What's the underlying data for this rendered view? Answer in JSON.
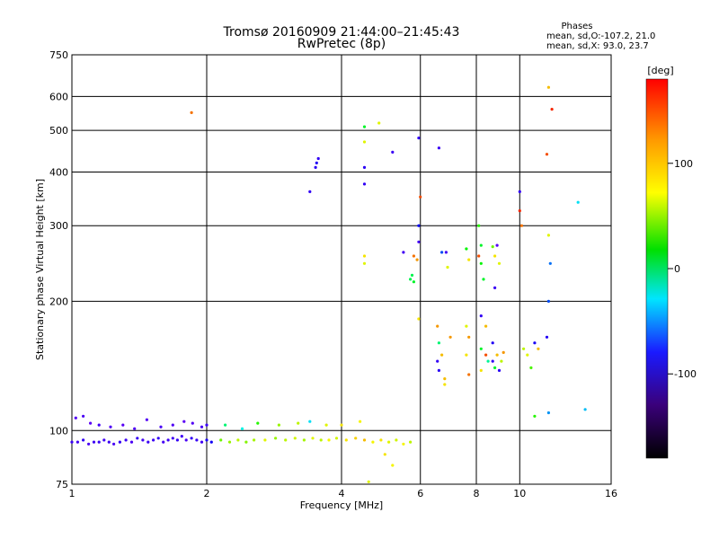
{
  "chart_data": {
    "type": "scatter",
    "title": "Tromsø 20160909 21:44:00–21:45:43",
    "subtitle": "RwPretec (8p)",
    "xlabel": "Frequency [MHz]",
    "ylabel": "Stationary phase Virtual Height [km]",
    "xscale": "log",
    "yscale": "log",
    "xlim": [
      1,
      16
    ],
    "ylim": [
      75,
      750
    ],
    "grid": true,
    "x_ticks": [
      1,
      2,
      4,
      6,
      8,
      10,
      16
    ],
    "x_tick_labels": [
      "1",
      "2",
      "4",
      "6",
      "8",
      "10",
      "16"
    ],
    "y_ticks": [
      75,
      100,
      200,
      300,
      400,
      500,
      600,
      750
    ],
    "y_tick_labels": [
      "75",
      "100",
      "200",
      "300",
      "400",
      "500",
      "600",
      "750"
    ],
    "phases_box": {
      "heading": "Phases",
      "line1": "mean, sd,O:-107.2, 21.0",
      "line2": "mean, sd,X:  93.0, 23.7"
    },
    "colorbar": {
      "label": "[deg]",
      "range": [
        -180,
        180
      ],
      "ticks": [
        100,
        0,
        -100
      ],
      "tick_labels": [
        "100",
        "0",
        "-100"
      ]
    },
    "points": [
      {
        "x": 1.0,
        "y": 94,
        "phase": -115
      },
      {
        "x": 1.03,
        "y": 94,
        "phase": -120
      },
      {
        "x": 1.06,
        "y": 95,
        "phase": -110
      },
      {
        "x": 1.09,
        "y": 93,
        "phase": -125
      },
      {
        "x": 1.12,
        "y": 94,
        "phase": -118
      },
      {
        "x": 1.15,
        "y": 94,
        "phase": -112
      },
      {
        "x": 1.18,
        "y": 95,
        "phase": -120
      },
      {
        "x": 1.21,
        "y": 94,
        "phase": -115
      },
      {
        "x": 1.24,
        "y": 93,
        "phase": -122
      },
      {
        "x": 1.28,
        "y": 94,
        "phase": -110
      },
      {
        "x": 1.32,
        "y": 95,
        "phase": -118
      },
      {
        "x": 1.36,
        "y": 94,
        "phase": -125
      },
      {
        "x": 1.4,
        "y": 96,
        "phase": -112
      },
      {
        "x": 1.44,
        "y": 95,
        "phase": -120
      },
      {
        "x": 1.48,
        "y": 94,
        "phase": -115
      },
      {
        "x": 1.52,
        "y": 95,
        "phase": -118
      },
      {
        "x": 1.56,
        "y": 96,
        "phase": -110
      },
      {
        "x": 1.6,
        "y": 94,
        "phase": -122
      },
      {
        "x": 1.64,
        "y": 95,
        "phase": -116
      },
      {
        "x": 1.68,
        "y": 96,
        "phase": -120
      },
      {
        "x": 1.72,
        "y": 95,
        "phase": -113
      },
      {
        "x": 1.76,
        "y": 97,
        "phase": -118
      },
      {
        "x": 1.8,
        "y": 95,
        "phase": -125
      },
      {
        "x": 1.85,
        "y": 96,
        "phase": -110
      },
      {
        "x": 1.9,
        "y": 95,
        "phase": -115
      },
      {
        "x": 1.95,
        "y": 94,
        "phase": -120
      },
      {
        "x": 2.0,
        "y": 95,
        "phase": -95
      },
      {
        "x": 2.05,
        "y": 94,
        "phase": -90
      },
      {
        "x": 1.02,
        "y": 107,
        "phase": -130
      },
      {
        "x": 1.06,
        "y": 108,
        "phase": -125
      },
      {
        "x": 1.1,
        "y": 104,
        "phase": -135
      },
      {
        "x": 1.15,
        "y": 103,
        "phase": -120
      },
      {
        "x": 1.22,
        "y": 102,
        "phase": -128
      },
      {
        "x": 1.3,
        "y": 103,
        "phase": -132
      },
      {
        "x": 1.38,
        "y": 101,
        "phase": -126
      },
      {
        "x": 1.47,
        "y": 106,
        "phase": -130
      },
      {
        "x": 1.58,
        "y": 102,
        "phase": -124
      },
      {
        "x": 1.68,
        "y": 103,
        "phase": -128
      },
      {
        "x": 1.78,
        "y": 105,
        "phase": -135
      },
      {
        "x": 1.86,
        "y": 104,
        "phase": -129
      },
      {
        "x": 1.95,
        "y": 102,
        "phase": -122
      },
      {
        "x": 2.0,
        "y": 103,
        "phase": -115
      },
      {
        "x": 2.15,
        "y": 95,
        "phase": 80
      },
      {
        "x": 2.25,
        "y": 94,
        "phase": 90
      },
      {
        "x": 2.35,
        "y": 95,
        "phase": 100
      },
      {
        "x": 2.45,
        "y": 94,
        "phase": 85
      },
      {
        "x": 2.55,
        "y": 95,
        "phase": 95
      },
      {
        "x": 2.7,
        "y": 95,
        "phase": 110
      },
      {
        "x": 2.85,
        "y": 96,
        "phase": 90
      },
      {
        "x": 3.0,
        "y": 95,
        "phase": 100
      },
      {
        "x": 3.15,
        "y": 96,
        "phase": 105
      },
      {
        "x": 3.3,
        "y": 95,
        "phase": 95
      },
      {
        "x": 3.45,
        "y": 96,
        "phase": 110
      },
      {
        "x": 3.6,
        "y": 95,
        "phase": 100
      },
      {
        "x": 3.75,
        "y": 95,
        "phase": 115
      },
      {
        "x": 3.9,
        "y": 96,
        "phase": 105
      },
      {
        "x": 4.1,
        "y": 95,
        "phase": 120
      },
      {
        "x": 4.3,
        "y": 96,
        "phase": 125
      },
      {
        "x": 4.5,
        "y": 95,
        "phase": 130
      },
      {
        "x": 4.7,
        "y": 94,
        "phase": 115
      },
      {
        "x": 4.9,
        "y": 95,
        "phase": 120
      },
      {
        "x": 5.1,
        "y": 94,
        "phase": 110
      },
      {
        "x": 5.3,
        "y": 95,
        "phase": 105
      },
      {
        "x": 5.5,
        "y": 93,
        "phase": 115
      },
      {
        "x": 5.7,
        "y": 94,
        "phase": 100
      },
      {
        "x": 2.2,
        "y": 103,
        "phase": 20
      },
      {
        "x": 2.4,
        "y": 101,
        "phase": -10
      },
      {
        "x": 2.6,
        "y": 104,
        "phase": 60
      },
      {
        "x": 2.9,
        "y": 103,
        "phase": 90
      },
      {
        "x": 3.2,
        "y": 104,
        "phase": 100
      },
      {
        "x": 3.4,
        "y": 105,
        "phase": -20
      },
      {
        "x": 3.7,
        "y": 103,
        "phase": 110
      },
      {
        "x": 4.0,
        "y": 103,
        "phase": 120
      },
      {
        "x": 4.4,
        "y": 105,
        "phase": 115
      },
      {
        "x": 5.0,
        "y": 88,
        "phase": 120
      },
      {
        "x": 5.2,
        "y": 83,
        "phase": 115
      },
      {
        "x": 4.6,
        "y": 76,
        "phase": 110
      },
      {
        "x": 1.85,
        "y": 550,
        "phase": 150
      },
      {
        "x": 3.4,
        "y": 360,
        "phase": -110
      },
      {
        "x": 3.5,
        "y": 410,
        "phase": -105
      },
      {
        "x": 3.52,
        "y": 420,
        "phase": -100
      },
      {
        "x": 3.55,
        "y": 430,
        "phase": -110
      },
      {
        "x": 4.5,
        "y": 510,
        "phase": 40
      },
      {
        "x": 4.5,
        "y": 470,
        "phase": 110
      },
      {
        "x": 4.5,
        "y": 410,
        "phase": -105
      },
      {
        "x": 4.5,
        "y": 375,
        "phase": -110
      },
      {
        "x": 4.5,
        "y": 245,
        "phase": 110
      },
      {
        "x": 4.5,
        "y": 255,
        "phase": 120
      },
      {
        "x": 4.85,
        "y": 520,
        "phase": 110
      },
      {
        "x": 5.2,
        "y": 445,
        "phase": -115
      },
      {
        "x": 5.5,
        "y": 260,
        "phase": -120
      },
      {
        "x": 5.8,
        "y": 255,
        "phase": 150
      },
      {
        "x": 5.9,
        "y": 250,
        "phase": 140
      },
      {
        "x": 5.75,
        "y": 230,
        "phase": 30
      },
      {
        "x": 5.7,
        "y": 225,
        "phase": 30
      },
      {
        "x": 5.8,
        "y": 222,
        "phase": 40
      },
      {
        "x": 5.95,
        "y": 480,
        "phase": -110
      },
      {
        "x": 6.0,
        "y": 350,
        "phase": 160
      },
      {
        "x": 5.95,
        "y": 300,
        "phase": -80
      },
      {
        "x": 5.95,
        "y": 275,
        "phase": -120
      },
      {
        "x": 5.95,
        "y": 182,
        "phase": 120
      },
      {
        "x": 6.6,
        "y": 455,
        "phase": -115
      },
      {
        "x": 6.7,
        "y": 260,
        "phase": -60
      },
      {
        "x": 6.85,
        "y": 260,
        "phase": -120
      },
      {
        "x": 6.9,
        "y": 240,
        "phase": 110
      },
      {
        "x": 6.55,
        "y": 175,
        "phase": 140
      },
      {
        "x": 6.6,
        "y": 160,
        "phase": 20
      },
      {
        "x": 6.55,
        "y": 145,
        "phase": -110
      },
      {
        "x": 6.6,
        "y": 138,
        "phase": -105
      },
      {
        "x": 6.8,
        "y": 132,
        "phase": 130
      },
      {
        "x": 6.8,
        "y": 128,
        "phase": 120
      },
      {
        "x": 6.7,
        "y": 150,
        "phase": 130
      },
      {
        "x": 7.0,
        "y": 165,
        "phase": 140
      },
      {
        "x": 7.6,
        "y": 265,
        "phase": 50
      },
      {
        "x": 7.7,
        "y": 250,
        "phase": 120
      },
      {
        "x": 7.6,
        "y": 175,
        "phase": 110
      },
      {
        "x": 7.7,
        "y": 165,
        "phase": 140
      },
      {
        "x": 7.6,
        "y": 150,
        "phase": 120
      },
      {
        "x": 7.7,
        "y": 135,
        "phase": 150
      },
      {
        "x": 8.1,
        "y": 300,
        "phase": 60
      },
      {
        "x": 8.2,
        "y": 270,
        "phase": 40
      },
      {
        "x": 8.1,
        "y": 255,
        "phase": 160
      },
      {
        "x": 8.2,
        "y": 245,
        "phase": 50
      },
      {
        "x": 8.3,
        "y": 225,
        "phase": 40
      },
      {
        "x": 8.2,
        "y": 185,
        "phase": -110
      },
      {
        "x": 8.4,
        "y": 175,
        "phase": 130
      },
      {
        "x": 8.2,
        "y": 155,
        "phase": 40
      },
      {
        "x": 8.4,
        "y": 150,
        "phase": 160
      },
      {
        "x": 8.2,
        "y": 138,
        "phase": 120
      },
      {
        "x": 8.5,
        "y": 145,
        "phase": 10
      },
      {
        "x": 8.7,
        "y": 268,
        "phase": 80
      },
      {
        "x": 8.8,
        "y": 255,
        "phase": 120
      },
      {
        "x": 8.9,
        "y": 270,
        "phase": -130
      },
      {
        "x": 9.0,
        "y": 245,
        "phase": 110
      },
      {
        "x": 8.8,
        "y": 215,
        "phase": -115
      },
      {
        "x": 8.7,
        "y": 160,
        "phase": -100
      },
      {
        "x": 8.9,
        "y": 150,
        "phase": 130
      },
      {
        "x": 8.7,
        "y": 145,
        "phase": -110
      },
      {
        "x": 9.1,
        "y": 145,
        "phase": 100
      },
      {
        "x": 8.8,
        "y": 140,
        "phase": 40
      },
      {
        "x": 9.0,
        "y": 138,
        "phase": -105
      },
      {
        "x": 9.2,
        "y": 152,
        "phase": 140
      },
      {
        "x": 10.0,
        "y": 360,
        "phase": -110
      },
      {
        "x": 10.0,
        "y": 325,
        "phase": 170
      },
      {
        "x": 10.1,
        "y": 300,
        "phase": 150
      },
      {
        "x": 10.2,
        "y": 155,
        "phase": 100
      },
      {
        "x": 10.4,
        "y": 150,
        "phase": 110
      },
      {
        "x": 10.6,
        "y": 140,
        "phase": 70
      },
      {
        "x": 10.8,
        "y": 160,
        "phase": -95
      },
      {
        "x": 11.0,
        "y": 155,
        "phase": 130
      },
      {
        "x": 10.8,
        "y": 108,
        "phase": 60
      },
      {
        "x": 11.6,
        "y": 630,
        "phase": 130
      },
      {
        "x": 11.8,
        "y": 560,
        "phase": 170
      },
      {
        "x": 11.5,
        "y": 440,
        "phase": 160
      },
      {
        "x": 11.6,
        "y": 285,
        "phase": 110
      },
      {
        "x": 11.7,
        "y": 245,
        "phase": -50
      },
      {
        "x": 11.6,
        "y": 200,
        "phase": -60
      },
      {
        "x": 11.5,
        "y": 165,
        "phase": -100
      },
      {
        "x": 11.6,
        "y": 110,
        "phase": -40
      },
      {
        "x": 13.5,
        "y": 340,
        "phase": -20
      },
      {
        "x": 14.0,
        "y": 112,
        "phase": -30
      }
    ]
  }
}
